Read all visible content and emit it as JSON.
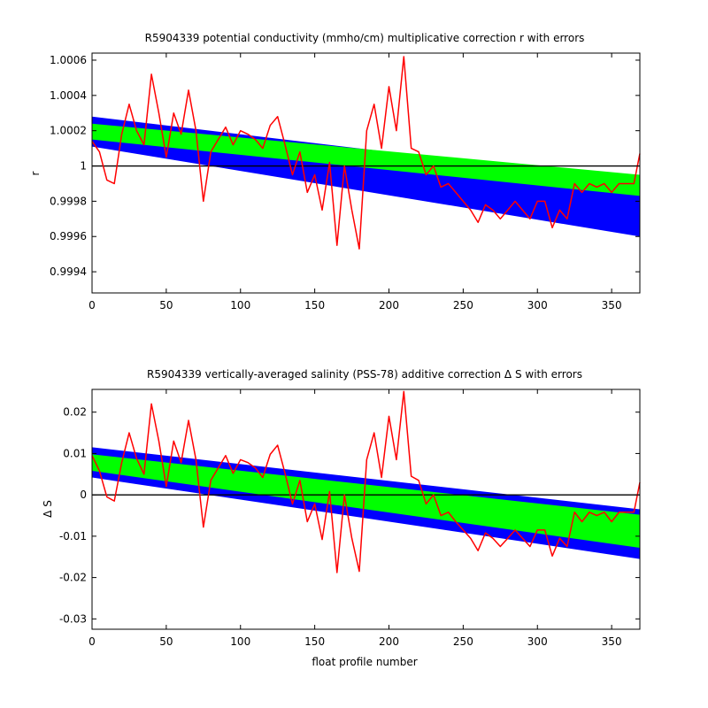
{
  "chart_data": [
    {
      "type": "line",
      "title": "R5904339 potential conductivity (mmho/cm) multiplicative correction r with errors",
      "xlabel": "",
      "ylabel": "r",
      "xlim": [
        0,
        369
      ],
      "ylim": [
        0.99928,
        1.00064
      ],
      "x_ticks": [
        0,
        50,
        100,
        150,
        200,
        250,
        300,
        350
      ],
      "x_tick_labels": [
        "0",
        "50",
        "100",
        "150",
        "200",
        "250",
        "300",
        "350"
      ],
      "y_ticks": [
        0.9994,
        0.9996,
        0.9998,
        1,
        1.0002,
        1.0004,
        1.0006
      ],
      "y_tick_labels": [
        "0.9994",
        "0.9996",
        "0.9998",
        "1",
        "1.0002",
        "1.0004",
        "1.0006"
      ],
      "reference_line": 1,
      "grid": false,
      "bands": [
        {
          "color": "#0000ff",
          "x": [
            0,
            369
          ],
          "upper": [
            1.00028,
            0.99991
          ],
          "lower": [
            1.00011,
            0.9996
          ]
        },
        {
          "color": "#00ff00",
          "x": [
            0,
            369
          ],
          "upper": [
            1.00024,
            0.99995
          ],
          "lower": [
            1.00015,
            0.99983
          ]
        }
      ],
      "series": [
        {
          "color": "#ff0000",
          "x": [
            0,
            5,
            10,
            15,
            20,
            25,
            30,
            35,
            40,
            45,
            50,
            55,
            60,
            65,
            70,
            75,
            80,
            85,
            90,
            95,
            100,
            105,
            110,
            115,
            120,
            125,
            130,
            135,
            140,
            145,
            150,
            155,
            160,
            165,
            170,
            175,
            180,
            185,
            190,
            195,
            200,
            205,
            210,
            215,
            220,
            225,
            230,
            235,
            240,
            245,
            250,
            255,
            260,
            265,
            270,
            275,
            280,
            285,
            290,
            295,
            300,
            305,
            310,
            315,
            320,
            325,
            330,
            335,
            340,
            345,
            350,
            355,
            360,
            365,
            369
          ],
          "y": [
            1.00014,
            1.00008,
            0.99992,
            0.9999,
            1.00018,
            1.00035,
            1.0002,
            1.00012,
            1.00052,
            1.0003,
            1.00005,
            1.0003,
            1.00018,
            1.00043,
            1.0002,
            0.9998,
            1.00008,
            1.00015,
            1.00022,
            1.00012,
            1.0002,
            1.00018,
            1.00015,
            1.0001,
            1.00023,
            1.00028,
            1.00012,
            0.99995,
            1.00008,
            0.99985,
            0.99995,
            0.99975,
            1.00002,
            0.99955,
            1.0,
            0.99975,
            0.99953,
            1.0002,
            1.00035,
            1.0001,
            1.00045,
            1.0002,
            1.00062,
            1.0001,
            1.00008,
            0.99995,
            1.0,
            0.99988,
            0.9999,
            0.99985,
            0.9998,
            0.99975,
            0.99968,
            0.99978,
            0.99975,
            0.9997,
            0.99975,
            0.9998,
            0.99975,
            0.9997,
            0.9998,
            0.9998,
            0.99965,
            0.99975,
            0.9997,
            0.9999,
            0.99985,
            0.9999,
            0.99988,
            0.9999,
            0.99985,
            0.9999,
            0.9999,
            0.9999,
            1.00007
          ]
        }
      ]
    },
    {
      "type": "line",
      "title": "R5904339 vertically-averaged salinity (PSS-78) additive correction Δ S with errors",
      "xlabel": "float profile number",
      "ylabel": "Δ S",
      "xlim": [
        0,
        369
      ],
      "ylim": [
        -0.0325,
        0.0255
      ],
      "x_ticks": [
        0,
        50,
        100,
        150,
        200,
        250,
        300,
        350
      ],
      "x_tick_labels": [
        "0",
        "50",
        "100",
        "150",
        "200",
        "250",
        "300",
        "350"
      ],
      "y_ticks": [
        -0.03,
        -0.02,
        -0.01,
        0,
        0.01,
        0.02
      ],
      "y_tick_labels": [
        "-0.03",
        "-0.02",
        "-0.01",
        "0",
        "0.01",
        "0.02"
      ],
      "reference_line": 0,
      "grid": false,
      "bands": [
        {
          "color": "#0000ff",
          "x": [
            0,
            369
          ],
          "upper": [
            0.0115,
            -0.0035
          ],
          "lower": [
            0.0042,
            -0.0155
          ]
        },
        {
          "color": "#00ff00",
          "x": [
            0,
            369
          ],
          "upper": [
            0.0098,
            -0.0048
          ],
          "lower": [
            0.0058,
            -0.0128
          ]
        }
      ],
      "series": [
        {
          "color": "#ff0000",
          "x": [
            0,
            5,
            10,
            15,
            20,
            25,
            30,
            35,
            40,
            45,
            50,
            55,
            60,
            65,
            70,
            75,
            80,
            85,
            90,
            95,
            100,
            105,
            110,
            115,
            120,
            125,
            130,
            135,
            140,
            145,
            150,
            155,
            160,
            165,
            170,
            175,
            180,
            185,
            190,
            195,
            200,
            205,
            210,
            215,
            220,
            225,
            230,
            235,
            240,
            245,
            250,
            255,
            260,
            265,
            270,
            275,
            280,
            285,
            290,
            295,
            300,
            305,
            310,
            315,
            320,
            325,
            330,
            335,
            340,
            345,
            350,
            355,
            360,
            365,
            369
          ],
          "y": [
            0.0095,
            0.0058,
            -0.0005,
            -0.0015,
            0.0078,
            0.015,
            0.0088,
            0.005,
            0.022,
            0.013,
            0.002,
            0.013,
            0.0078,
            0.018,
            0.0085,
            -0.0078,
            0.0035,
            0.0065,
            0.0095,
            0.0052,
            0.0085,
            0.0078,
            0.0065,
            0.0042,
            0.0098,
            0.012,
            0.0052,
            -0.0022,
            0.0035,
            -0.0065,
            -0.0022,
            -0.0108,
            0.0008,
            -0.0188,
            0.0,
            -0.0105,
            -0.0185,
            0.0085,
            0.015,
            0.0042,
            0.019,
            0.0085,
            0.025,
            0.0045,
            0.0035,
            -0.0022,
            0.0,
            -0.005,
            -0.0042,
            -0.0065,
            -0.0085,
            -0.0105,
            -0.0135,
            -0.0092,
            -0.0105,
            -0.0125,
            -0.0105,
            -0.0085,
            -0.0105,
            -0.0125,
            -0.0085,
            -0.0085,
            -0.0148,
            -0.0105,
            -0.0125,
            -0.0042,
            -0.0065,
            -0.0042,
            -0.005,
            -0.0042,
            -0.0065,
            -0.0042,
            -0.0042,
            -0.0042,
            0.003
          ]
        }
      ]
    }
  ]
}
